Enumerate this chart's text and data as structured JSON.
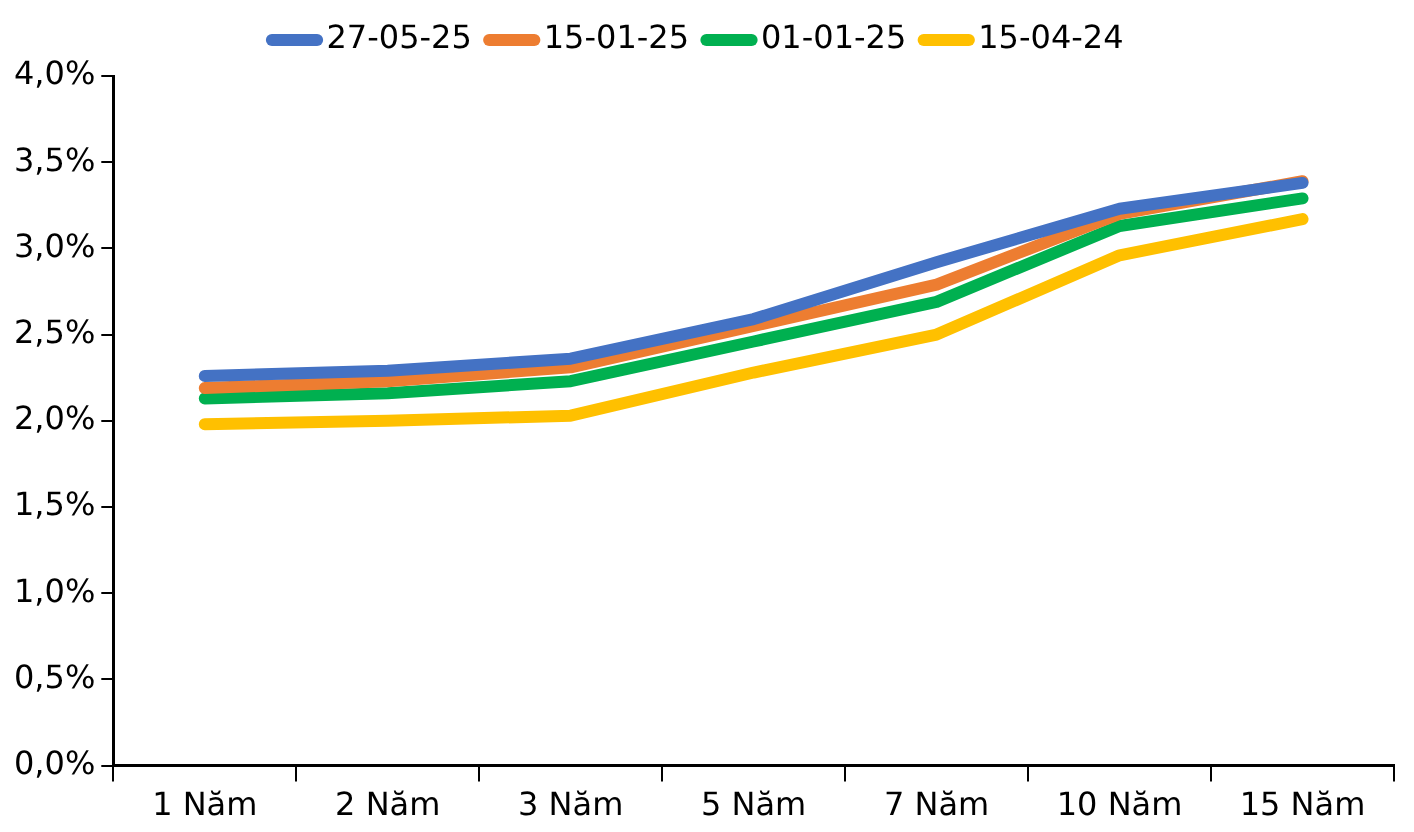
{
  "chart_data": {
    "type": "line",
    "categories": [
      "1 Năm",
      "2 Năm",
      "3 Năm",
      "5 Năm",
      "7 Năm",
      "10 Năm",
      "15 Năm"
    ],
    "series": [
      {
        "name": "27-05-25",
        "color": "#4472c4",
        "values": [
          2.26,
          2.29,
          2.36,
          2.59,
          2.92,
          3.23,
          3.38
        ]
      },
      {
        "name": "15-01-25",
        "color": "#ed7d31",
        "values": [
          2.19,
          2.23,
          2.31,
          2.55,
          2.79,
          3.2,
          3.39
        ]
      },
      {
        "name": "01-01-25",
        "color": "#00b050",
        "values": [
          2.13,
          2.16,
          2.23,
          2.46,
          2.69,
          3.13,
          3.29
        ]
      },
      {
        "name": "15-04-24",
        "color": "#ffc000",
        "values": [
          1.98,
          2.0,
          2.03,
          2.28,
          2.5,
          2.96,
          3.17
        ]
      }
    ],
    "ylim": [
      0,
      4
    ],
    "yticks": [
      {
        "value": 0,
        "label": "0,0%"
      },
      {
        "value": 0.5,
        "label": "0,5%"
      },
      {
        "value": 1,
        "label": "1,0%"
      },
      {
        "value": 1.5,
        "label": "1,5%"
      },
      {
        "value": 2,
        "label": "2,0%"
      },
      {
        "value": 2.5,
        "label": "2,5%"
      },
      {
        "value": 3,
        "label": "3,0%"
      },
      {
        "value": 3.5,
        "label": "3,5%"
      },
      {
        "value": 4,
        "label": "4,0%"
      }
    ],
    "grid": false,
    "legend": "top",
    "marker": "none",
    "line_style": "solid"
  }
}
